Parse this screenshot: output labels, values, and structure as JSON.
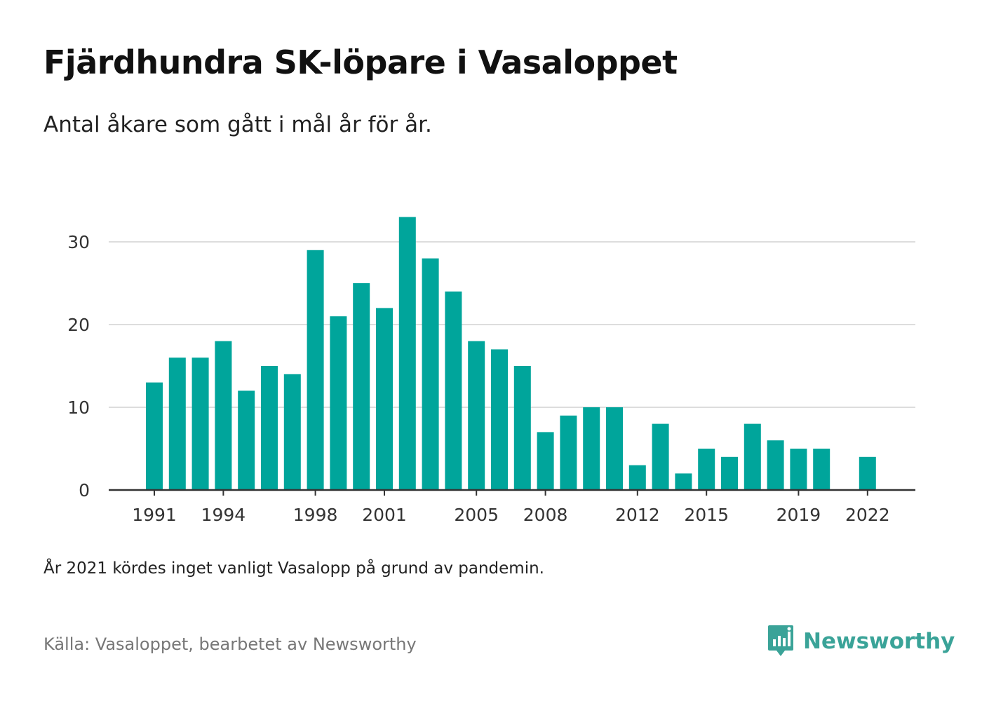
{
  "header": {
    "title": "Fjärdhundra SK-löpare i Vasaloppet",
    "subtitle": "Antal åkare som gått i mål år för år."
  },
  "footer": {
    "note": "År 2021 kördes inget vanligt Vasalopp på grund av pandemin.",
    "source": "Källa: Vasaloppet, bearbetet av Newsworthy",
    "brand_name": "Newsworthy",
    "brand_icon": "newsworthy-logo-icon"
  },
  "colors": {
    "bar": "#00a59b",
    "grid": "#dddddd",
    "axis": "#333333",
    "brand": "#3aa398"
  },
  "chart_data": {
    "type": "bar",
    "title": "Fjärdhundra SK-löpare i Vasaloppet",
    "subtitle": "Antal åkare som gått i mål år för år.",
    "xlabel": "",
    "ylabel": "",
    "ylim": [
      0,
      35
    ],
    "yticks": [
      0,
      10,
      20,
      30
    ],
    "grid": true,
    "x_tick_labels": [
      "1991",
      "1994",
      "1998",
      "2001",
      "2005",
      "2008",
      "2012",
      "2015",
      "2019",
      "2022"
    ],
    "categories": [
      "1991",
      "1992",
      "1993",
      "1994",
      "1995",
      "1996",
      "1997",
      "1998",
      "1999",
      "2000",
      "2001",
      "2002",
      "2003",
      "2004",
      "2005",
      "2006",
      "2007",
      "2008",
      "2009",
      "2010",
      "2011",
      "2012",
      "2013",
      "2014",
      "2015",
      "2016",
      "2017",
      "2018",
      "2019",
      "2020",
      "2021",
      "2022"
    ],
    "values": [
      13,
      16,
      16,
      18,
      12,
      15,
      14,
      29,
      21,
      25,
      22,
      33,
      28,
      24,
      18,
      17,
      15,
      7,
      9,
      10,
      10,
      3,
      8,
      2,
      5,
      4,
      8,
      6,
      5,
      5,
      null,
      4
    ]
  }
}
